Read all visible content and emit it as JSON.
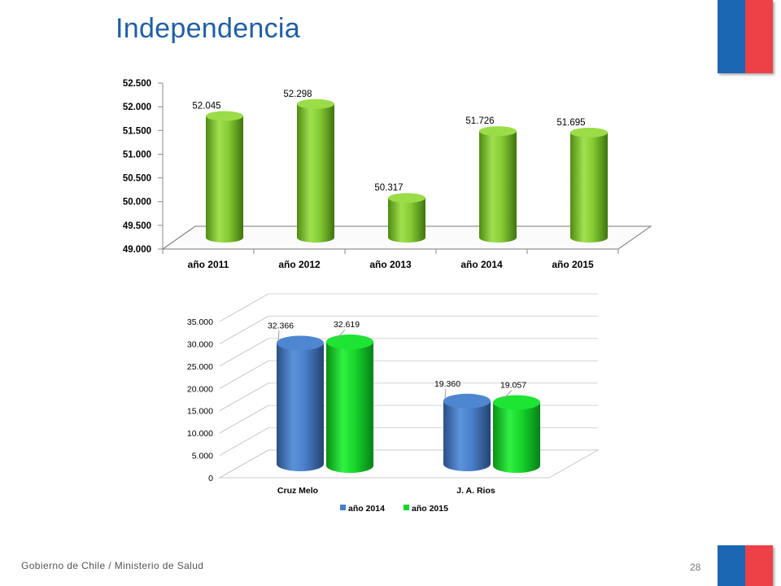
{
  "page": {
    "title": "Independencia",
    "footer": "Gobierno de Chile / Ministerio de Salud",
    "page_number": "28"
  },
  "colors": {
    "title": "#1f5fa8",
    "flag_blue": "#1b67b3",
    "flag_red": "#ee4047",
    "bar_green_light": "#8fd43f",
    "bar_blue": "#4a7fc9",
    "bar_green_bright": "#16d62a"
  },
  "chart_data": [
    {
      "type": "bar",
      "style": "3d-cylinder",
      "categories": [
        "año 2011",
        "año 2012",
        "año 2013",
        "año 2014",
        "año 2015"
      ],
      "values": [
        52045,
        52298,
        50317,
        51726,
        51695
      ],
      "value_labels": [
        "52.045",
        "52.298",
        "50.317",
        "51.726",
        "51.695"
      ],
      "ylim": [
        49000,
        52500
      ],
      "yticks": [
        49000,
        49500,
        50000,
        50500,
        51000,
        51500,
        52000,
        52500
      ],
      "ytick_labels": [
        "49.000",
        "49.500",
        "50.000",
        "50.500",
        "51.000",
        "51.500",
        "52.000",
        "52.500"
      ],
      "grid": false,
      "legend": "none"
    },
    {
      "type": "bar",
      "style": "3d-cylinder",
      "categories": [
        "Cruz Melo",
        "J. A. Rios"
      ],
      "series": [
        {
          "name": "año 2014",
          "values": [
            32366,
            19360
          ],
          "value_labels": [
            "32.366",
            "19.360"
          ],
          "color": "#4a7fc9"
        },
        {
          "name": "año 2015",
          "values": [
            32619,
            19057
          ],
          "value_labels": [
            "32.619",
            "19.057"
          ],
          "color": "#16d62a"
        }
      ],
      "ylim": [
        0,
        35000
      ],
      "yticks": [
        0,
        5000,
        10000,
        15000,
        20000,
        25000,
        30000,
        35000
      ],
      "ytick_labels": [
        "0",
        "5.000",
        "10.000",
        "15.000",
        "20.000",
        "25.000",
        "30.000",
        "35.000"
      ],
      "grid": true,
      "legend": "bottom"
    }
  ]
}
